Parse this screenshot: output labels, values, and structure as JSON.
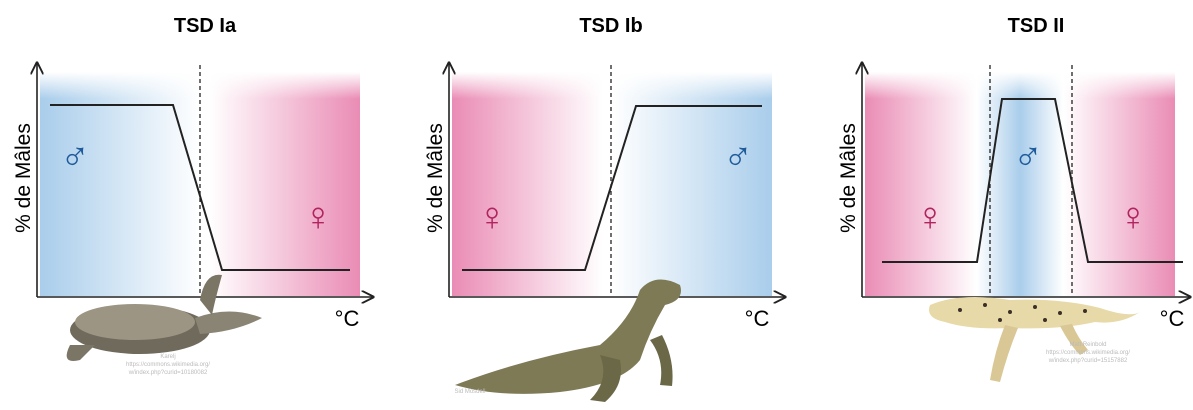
{
  "panels": [
    {
      "title": "TSD Ia",
      "y_label": "% de Mâles",
      "x_label": "°C",
      "symbols": [
        "♂",
        "♀"
      ],
      "credit": [
        "Karelj",
        "https://commons.wikimedia.org/",
        "w/index.php?curid=10180082"
      ]
    },
    {
      "title": "TSD Ib",
      "y_label": "% de Mâles",
      "x_label": "°C",
      "symbols": [
        "♀",
        "♂"
      ],
      "credit": [
        "Sid Mosdell"
      ]
    },
    {
      "title": "TSD II",
      "y_label": "% de Mâles",
      "x_label": "°C",
      "symbols": [
        "♀",
        "♂",
        "♀"
      ],
      "credit": [
        "Matt Reinbold",
        "https://commons.wikimedia.org/",
        "w/index.php?curid=15157882"
      ]
    }
  ]
}
